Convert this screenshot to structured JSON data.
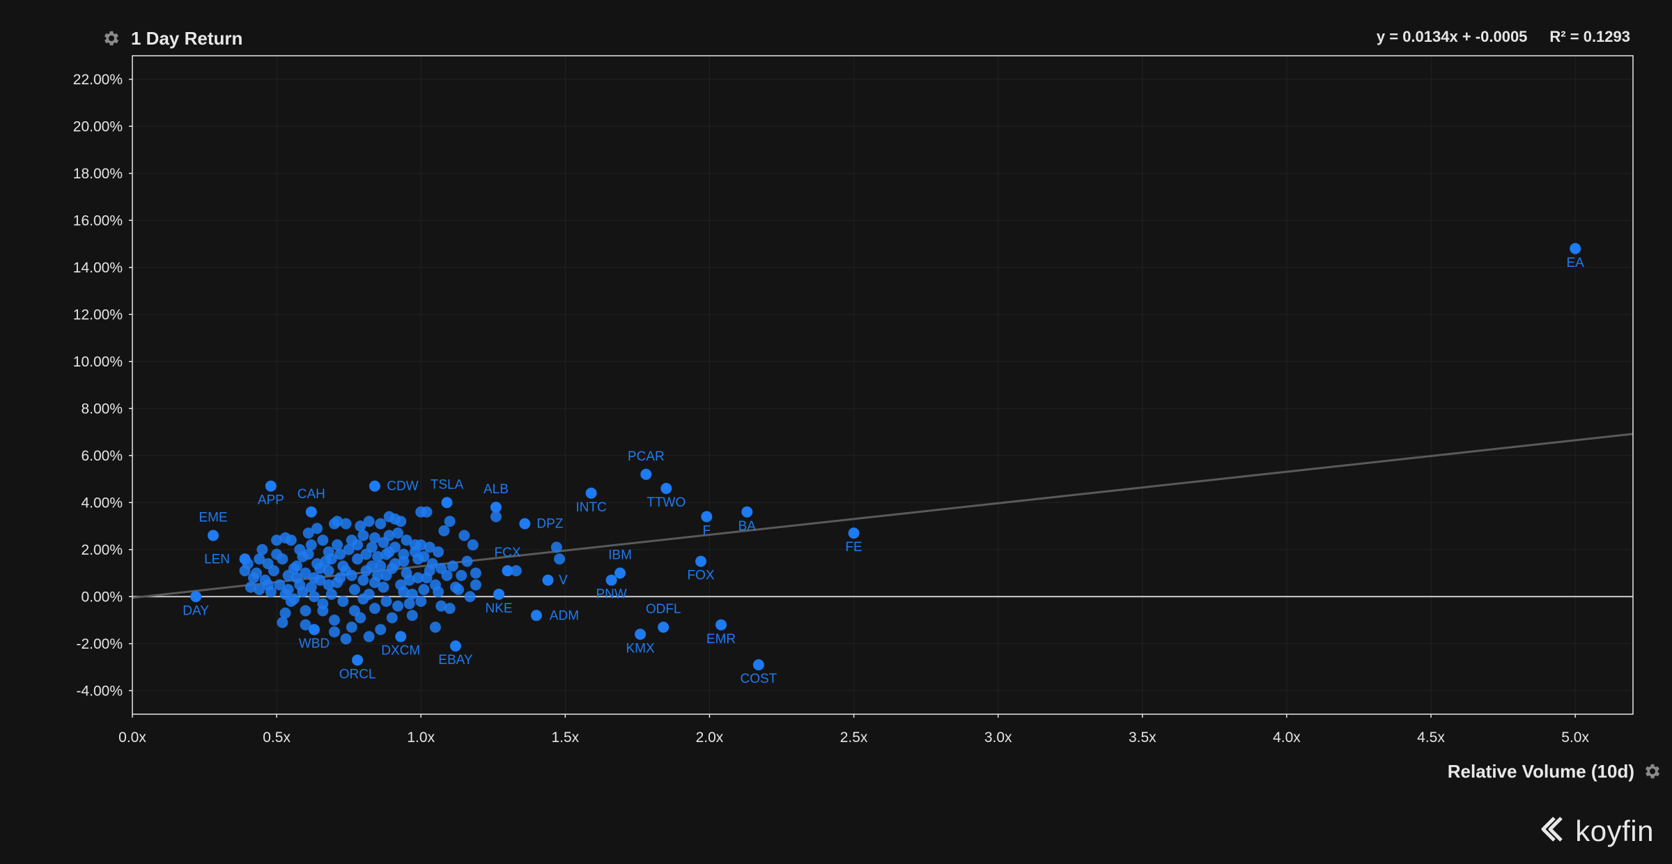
{
  "header": {
    "y_title": "1 Day Return",
    "equation": "y = 0.0134x + -0.0005",
    "r_squared": "R² = 0.1293"
  },
  "footer": {
    "x_title": "Relative Volume (10d)",
    "brand": "koyfin"
  },
  "icons": {
    "y_settings": "gear-icon",
    "x_settings": "gear-icon",
    "logo": "koyfin-logo-icon"
  },
  "colors": {
    "background": "#131313",
    "point": "#1e7bf2",
    "trendline": "#5a5a5a",
    "zero_line": "#d0d0d0",
    "grid": "#222222"
  },
  "chart_data": {
    "type": "scatter",
    "xlabel": "Relative Volume (10d)",
    "ylabel": "1 Day Return",
    "xlim": [
      0,
      5.2
    ],
    "ylim": [
      -0.05,
      0.23
    ],
    "x_ticks": [
      "0.0x",
      "0.5x",
      "1.0x",
      "1.5x",
      "2.0x",
      "2.5x",
      "3.0x",
      "3.5x",
      "4.0x",
      "4.5x",
      "5.0x"
    ],
    "x_tick_values": [
      0,
      0.5,
      1.0,
      1.5,
      2.0,
      2.5,
      3.0,
      3.5,
      4.0,
      4.5,
      5.0
    ],
    "y_ticks": [
      "22.00%",
      "20.00%",
      "18.00%",
      "16.00%",
      "14.00%",
      "12.00%",
      "10.00%",
      "8.00%",
      "6.00%",
      "4.00%",
      "2.00%",
      "0.00%",
      "-2.00%",
      "-4.00%"
    ],
    "y_tick_values": [
      0.22,
      0.2,
      0.18,
      0.16,
      0.14,
      0.12,
      0.1,
      0.08,
      0.06,
      0.04,
      0.02,
      0,
      -0.02,
      -0.04
    ],
    "grid": true,
    "trendline": {
      "slope": 0.0134,
      "intercept": -0.0005
    },
    "labeled_points": [
      {
        "label": "EA",
        "x": 5.0,
        "y": 0.148
      },
      {
        "label": "FE",
        "x": 2.5,
        "y": 0.027
      },
      {
        "label": "PCAR",
        "x": 1.78,
        "y": 0.052
      },
      {
        "label": "TTWO",
        "x": 1.85,
        "y": 0.046
      },
      {
        "label": "INTC",
        "x": 1.59,
        "y": 0.044
      },
      {
        "label": "F",
        "x": 1.99,
        "y": 0.034
      },
      {
        "label": "BA",
        "x": 2.13,
        "y": 0.036
      },
      {
        "label": "FOX",
        "x": 1.97,
        "y": 0.015
      },
      {
        "label": "IBM",
        "x": 1.69,
        "y": 0.01
      },
      {
        "label": "PNW",
        "x": 1.66,
        "y": 0.007
      },
      {
        "label": "V",
        "x": 1.44,
        "y": 0.007
      },
      {
        "label": "DPZ",
        "x": 1.36,
        "y": 0.031
      },
      {
        "label": "ALB",
        "x": 1.26,
        "y": 0.038
      },
      {
        "label": "FCX",
        "x": 1.3,
        "y": 0.011
      },
      {
        "label": "NKE",
        "x": 1.27,
        "y": 0.001
      },
      {
        "label": "ADM",
        "x": 1.4,
        "y": -0.008
      },
      {
        "label": "ODFL",
        "x": 1.84,
        "y": -0.013
      },
      {
        "label": "KMX",
        "x": 1.76,
        "y": -0.016
      },
      {
        "label": "EMR",
        "x": 2.04,
        "y": -0.012
      },
      {
        "label": "COST",
        "x": 2.17,
        "y": -0.029
      },
      {
        "label": "TSLA",
        "x": 1.09,
        "y": 0.04
      },
      {
        "label": "CDW",
        "x": 0.84,
        "y": 0.047
      },
      {
        "label": "CAH",
        "x": 0.62,
        "y": 0.036
      },
      {
        "label": "APP",
        "x": 0.48,
        "y": 0.047
      },
      {
        "label": "EME",
        "x": 0.28,
        "y": 0.026
      },
      {
        "label": "LEN",
        "x": 0.39,
        "y": 0.016
      },
      {
        "label": "DAY",
        "x": 0.22,
        "y": 0.0
      },
      {
        "label": "WBD",
        "x": 0.63,
        "y": -0.014
      },
      {
        "label": "DXCM",
        "x": 0.93,
        "y": -0.017
      },
      {
        "label": "EBAY",
        "x": 1.12,
        "y": -0.021
      },
      {
        "label": "ORCL",
        "x": 0.78,
        "y": -0.027
      }
    ],
    "unlabeled_points": [
      [
        1.26,
        0.034
      ],
      [
        1.47,
        0.021
      ],
      [
        1.48,
        0.016
      ],
      [
        1.33,
        0.011
      ],
      [
        1.19,
        0.005
      ],
      [
        1.19,
        0.01
      ],
      [
        1.16,
        0.015
      ],
      [
        1.17,
        0.0
      ],
      [
        1.13,
        0.003
      ],
      [
        1.1,
        0.032
      ],
      [
        1.08,
        0.028
      ],
      [
        1.15,
        0.026
      ],
      [
        1.18,
        0.022
      ],
      [
        1.02,
        0.036
      ],
      [
        1.0,
        0.036
      ],
      [
        1.06,
        0.019
      ],
      [
        1.09,
        0.009
      ],
      [
        1.05,
        0.005
      ],
      [
        0.98,
        0.022
      ],
      [
        1.0,
        0.022
      ],
      [
        1.03,
        0.021
      ],
      [
        0.99,
        0.016
      ],
      [
        1.07,
        -0.004
      ],
      [
        1.1,
        -0.005
      ],
      [
        1.05,
        -0.013
      ],
      [
        0.97,
        -0.008
      ],
      [
        0.9,
        -0.009
      ],
      [
        0.86,
        -0.014
      ],
      [
        0.82,
        -0.017
      ],
      [
        0.76,
        -0.013
      ],
      [
        0.74,
        -0.018
      ],
      [
        0.7,
        -0.01
      ],
      [
        0.66,
        -0.006
      ],
      [
        0.6,
        -0.006
      ],
      [
        0.55,
        -0.002
      ],
      [
        0.52,
        -0.011
      ],
      [
        0.53,
        -0.007
      ],
      [
        0.47,
        0.005
      ],
      [
        0.44,
        0.003
      ],
      [
        0.42,
        0.008
      ],
      [
        0.4,
        0.014
      ],
      [
        0.43,
        0.01
      ],
      [
        0.45,
        0.02
      ],
      [
        0.5,
        0.024
      ],
      [
        0.53,
        0.025
      ],
      [
        0.55,
        0.024
      ],
      [
        0.61,
        0.027
      ],
      [
        0.64,
        0.029
      ],
      [
        0.7,
        0.031
      ],
      [
        0.71,
        0.032
      ],
      [
        0.74,
        0.031
      ],
      [
        0.79,
        0.03
      ],
      [
        0.82,
        0.032
      ],
      [
        0.86,
        0.031
      ],
      [
        0.89,
        0.034
      ],
      [
        0.91,
        0.033
      ],
      [
        0.93,
        0.032
      ],
      [
        0.94,
        0.018
      ],
      [
        0.91,
        0.021
      ],
      [
        0.88,
        0.018
      ],
      [
        0.84,
        0.025
      ],
      [
        0.8,
        0.026
      ],
      [
        0.76,
        0.024
      ],
      [
        0.71,
        0.022
      ],
      [
        0.68,
        0.019
      ],
      [
        0.64,
        0.014
      ],
      [
        0.59,
        0.017
      ],
      [
        0.56,
        0.012
      ],
      [
        0.52,
        0.016
      ],
      [
        0.49,
        0.011
      ],
      [
        0.46,
        0.007
      ],
      [
        0.48,
        0.002
      ],
      [
        0.51,
        0.005
      ],
      [
        0.54,
        0.003
      ],
      [
        0.57,
        0.008
      ],
      [
        0.6,
        0.01
      ],
      [
        0.62,
        0.004
      ],
      [
        0.65,
        0.007
      ],
      [
        0.68,
        0.011
      ],
      [
        0.71,
        0.006
      ],
      [
        0.73,
        0.013
      ],
      [
        0.76,
        0.009
      ],
      [
        0.78,
        0.016
      ],
      [
        0.81,
        0.011
      ],
      [
        0.84,
        0.006
      ],
      [
        0.86,
        0.013
      ],
      [
        0.88,
        0.009
      ],
      [
        0.91,
        0.014
      ],
      [
        0.93,
        0.005
      ],
      [
        0.95,
        0.01
      ],
      [
        0.97,
        0.001
      ],
      [
        0.99,
        0.008
      ],
      [
        1.01,
        0.003
      ],
      [
        1.03,
        0.011
      ],
      [
        0.96,
        -0.003
      ],
      [
        0.92,
        -0.004
      ],
      [
        0.88,
        -0.002
      ],
      [
        0.84,
        -0.005
      ],
      [
        0.8,
        -0.001
      ],
      [
        0.77,
        -0.006
      ],
      [
        0.73,
        -0.002
      ],
      [
        0.69,
        0.001
      ],
      [
        0.66,
        -0.003
      ],
      [
        0.63,
        0.0
      ],
      [
        0.59,
        0.002
      ],
      [
        0.56,
        -0.001
      ],
      [
        0.53,
        0.001
      ],
      [
        0.58,
        0.02
      ],
      [
        0.62,
        0.022
      ],
      [
        0.66,
        0.024
      ],
      [
        0.69,
        0.016
      ],
      [
        0.72,
        0.018
      ],
      [
        0.75,
        0.02
      ],
      [
        0.78,
        0.022
      ],
      [
        0.81,
        0.018
      ],
      [
        0.83,
        0.021
      ],
      [
        0.85,
        0.017
      ],
      [
        0.87,
        0.023
      ],
      [
        0.89,
        0.026
      ],
      [
        0.92,
        0.027
      ],
      [
        0.95,
        0.024
      ],
      [
        0.98,
        0.019
      ],
      [
        1.01,
        0.017
      ],
      [
        1.04,
        0.014
      ],
      [
        1.07,
        0.012
      ],
      [
        1.11,
        0.013
      ],
      [
        1.14,
        0.009
      ],
      [
        1.12,
        0.004
      ],
      [
        0.5,
        0.018
      ],
      [
        0.47,
        0.014
      ],
      [
        0.44,
        0.016
      ],
      [
        0.41,
        0.004
      ],
      [
        0.39,
        0.011
      ],
      [
        0.61,
        0.018
      ],
      [
        0.67,
        0.015
      ],
      [
        0.74,
        0.011
      ],
      [
        0.8,
        0.007
      ],
      [
        0.87,
        0.004
      ],
      [
        0.94,
        0.002
      ],
      [
        1.0,
        -0.002
      ],
      [
        0.6,
        -0.012
      ],
      [
        0.7,
        -0.015
      ],
      [
        0.79,
        -0.009
      ],
      [
        0.57,
        0.013
      ],
      [
        0.65,
        0.012
      ],
      [
        0.72,
        0.008
      ],
      [
        0.83,
        0.013
      ],
      [
        0.9,
        0.012
      ],
      [
        0.96,
        0.007
      ],
      [
        0.54,
        0.009
      ],
      [
        0.58,
        0.005
      ],
      [
        0.63,
        0.008
      ],
      [
        0.68,
        0.005
      ],
      [
        0.77,
        0.003
      ],
      [
        0.82,
        0.001
      ],
      [
        0.85,
        0.009
      ],
      [
        0.89,
        0.019
      ],
      [
        0.94,
        0.015
      ],
      [
        1.02,
        0.008
      ],
      [
        1.06,
        0.002
      ]
    ]
  }
}
